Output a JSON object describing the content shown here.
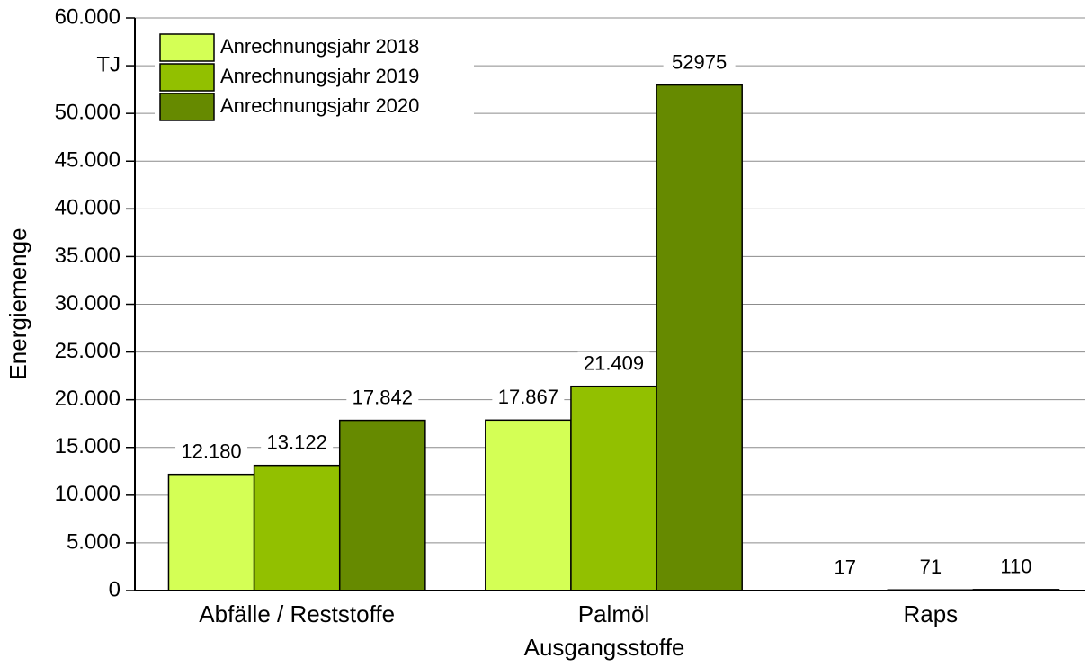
{
  "chart_data": {
    "type": "bar",
    "x_label": "Ausgangsstoffe",
    "y_label": "Energiemenge",
    "categories": [
      "Abfälle / Reststoffe",
      "Palmöl",
      "Raps"
    ],
    "series": [
      {
        "name": "Anrechnungsjahr 2018",
        "color": "#d4ff55",
        "values": [
          12180,
          17867,
          17
        ],
        "value_labels": [
          "12.180",
          "17.867",
          "17"
        ]
      },
      {
        "name": "Anrechnungsjahr 2019",
        "color": "#92c000",
        "values": [
          13122,
          21409,
          71
        ],
        "value_labels": [
          "13.122",
          "21.409",
          "71"
        ]
      },
      {
        "name": "Anrechnungsjahr 2020",
        "color": "#668a00",
        "values": [
          17842,
          52975,
          110
        ],
        "value_labels": [
          "17.842",
          "52975",
          "110"
        ]
      }
    ],
    "ylim": [
      0,
      60000
    ],
    "yticks": [
      0,
      {
        "value": 5000,
        "label": "5.000"
      },
      {
        "value": 10000,
        "label": "10.000"
      },
      {
        "value": 15000,
        "label": "15.000"
      },
      {
        "value": 20000,
        "label": "20.000"
      },
      {
        "value": 25000,
        "label": "25.000"
      },
      {
        "value": 30000,
        "label": "30.000"
      },
      {
        "value": 35000,
        "label": "35.000"
      },
      {
        "value": 40000,
        "label": "40.000"
      },
      {
        "value": 45000,
        "label": "45.000"
      },
      {
        "value": 50000,
        "label": "50.000"
      },
      {
        "value": 55000,
        "label": "TJ"
      },
      {
        "value": 60000,
        "label": "60.000"
      }
    ],
    "grid": true,
    "legend": "upper left"
  }
}
